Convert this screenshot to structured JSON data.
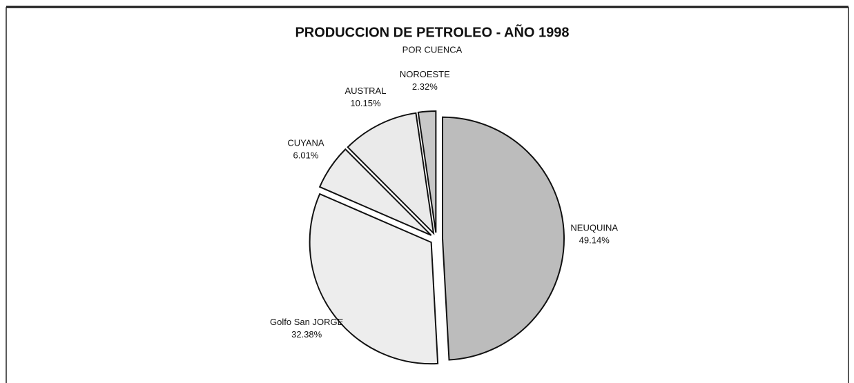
{
  "chart_data": {
    "type": "pie",
    "title": "PRODUCCION DE PETROLEO - AÑO 1998",
    "subtitle": "POR CUENCA",
    "categories": [
      "NEUQUINA",
      "Golfo San JORGE",
      "CUYANA",
      "AUSTRAL",
      "NOROESTE"
    ],
    "values": [
      49.14,
      32.38,
      6.01,
      10.15,
      2.32
    ],
    "value_labels": [
      "49.14%",
      "32.38%",
      "6.01%",
      "10.15%",
      "2.32%"
    ],
    "colors": [
      "#bcbcbc",
      "#ededed",
      "#ececec",
      "#eaeaea",
      "#c8c8c8"
    ]
  }
}
